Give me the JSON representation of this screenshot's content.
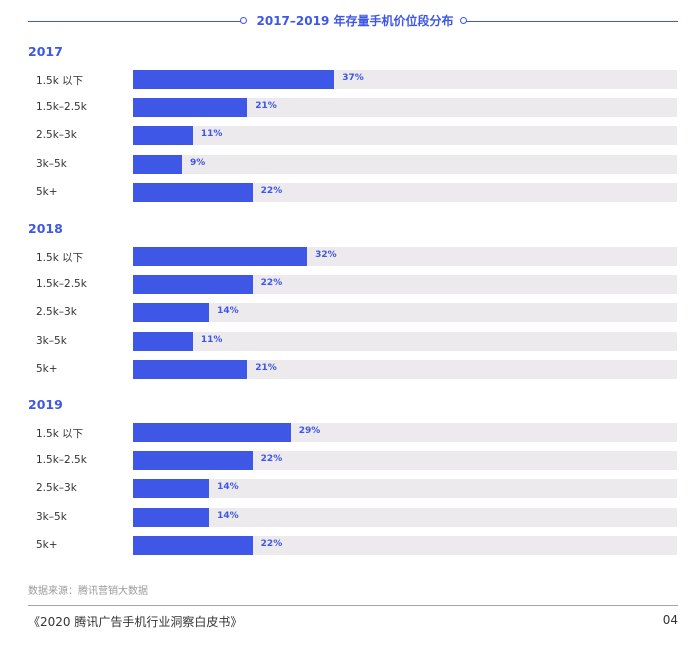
{
  "chart_data": {
    "type": "bar",
    "orientation": "horizontal",
    "title": "2017–2019 年存量手机价位段分布",
    "categories": [
      "1.5k 以下",
      "1.5k–2.5k",
      "2.5k–3k",
      "3k–5k",
      "5k+"
    ],
    "xlim": [
      0,
      100
    ],
    "unit": "%",
    "bar_color": "#3e57e6",
    "track_color": "#eceaec",
    "groups": [
      {
        "year": "2017",
        "values": [
          37,
          21,
          11,
          9,
          22
        ],
        "labels": [
          "37%",
          "21%",
          "11%",
          "9%",
          "22%"
        ]
      },
      {
        "year": "2018",
        "values": [
          32,
          22,
          14,
          11,
          21
        ],
        "labels": [
          "32%",
          "22%",
          "14%",
          "11%",
          "21%"
        ]
      },
      {
        "year": "2019",
        "values": [
          29,
          22,
          14,
          14,
          22
        ],
        "labels": [
          "29%",
          "22%",
          "14%",
          "14%",
          "22%"
        ]
      }
    ]
  },
  "source": "数据来源：腾讯营销大数据",
  "footer": {
    "title": "《2020 腾讯广告手机行业洞察白皮书》",
    "page": "04"
  }
}
